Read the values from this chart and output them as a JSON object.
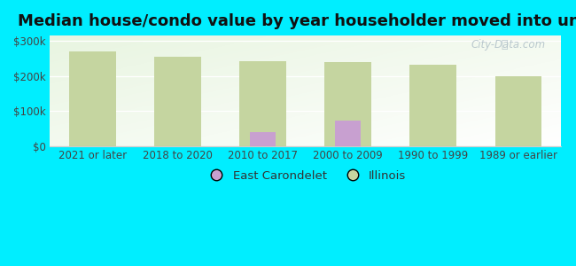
{
  "title": "Median house/condo value by year householder moved into unit",
  "categories": [
    "2021 or later",
    "2018 to 2020",
    "2010 to 2017",
    "2000 to 2009",
    "1990 to 1999",
    "1989 or earlier"
  ],
  "illinois_values": [
    270000,
    255000,
    242000,
    240000,
    232000,
    200000
  ],
  "east_carondelet_values": [
    null,
    null,
    40000,
    72000,
    null,
    null
  ],
  "illinois_color": "#c5d5a0",
  "east_carondelet_color": "#c8a0d0",
  "outer_bg": "#00eeff",
  "ylim": [
    0,
    315000
  ],
  "yticks": [
    0,
    100000,
    200000,
    300000
  ],
  "bar_width": 0.55,
  "legend_labels": [
    "East Carondelet",
    "Illinois"
  ],
  "watermark": "City-Data.com",
  "title_fontsize": 13,
  "tick_fontsize": 8.5,
  "legend_fontsize": 9.5
}
